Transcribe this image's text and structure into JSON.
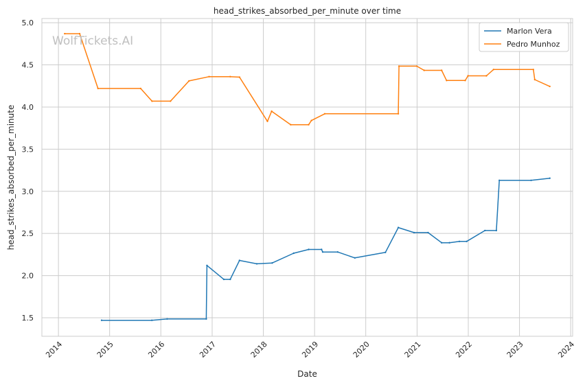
{
  "chart_data": {
    "type": "line",
    "title": "head_strikes_absorbed_per_minute over time",
    "xlabel": "Date",
    "ylabel": "head_strikes_absorbed_per_minute",
    "watermark": "WolfTickets.AI",
    "x_ticks": [
      "2014",
      "2015",
      "2016",
      "2017",
      "2018",
      "2019",
      "2020",
      "2021",
      "2022",
      "2023",
      "2024"
    ],
    "y_ticks": [
      "1.5",
      "2.0",
      "2.5",
      "3.0",
      "3.5",
      "4.0",
      "4.5",
      "5.0"
    ],
    "xlim": [
      "2013-09-05",
      "2024-01-15"
    ],
    "ylim": [
      1.28,
      5.05
    ],
    "grid": true,
    "legend_position": "top-right",
    "series": [
      {
        "name": "Marlon Vera",
        "color": "#1f77b4",
        "points": [
          [
            "2014-11-05",
            1.47
          ],
          [
            "2015-10-29",
            1.47
          ],
          [
            "2016-02-15",
            1.485
          ],
          [
            "2016-11-20",
            1.485
          ],
          [
            "2016-11-25",
            2.12
          ],
          [
            "2017-03-25",
            1.955
          ],
          [
            "2017-05-10",
            1.955
          ],
          [
            "2017-07-15",
            2.18
          ],
          [
            "2017-11-15",
            2.14
          ],
          [
            "2018-03-05",
            2.15
          ],
          [
            "2018-08-05",
            2.265
          ],
          [
            "2018-11-20",
            2.31
          ],
          [
            "2019-02-20",
            2.31
          ],
          [
            "2019-02-28",
            2.28
          ],
          [
            "2019-06-15",
            2.28
          ],
          [
            "2019-10-15",
            2.21
          ],
          [
            "2020-05-20",
            2.275
          ],
          [
            "2020-08-20",
            2.57
          ],
          [
            "2020-12-10",
            2.51
          ],
          [
            "2021-03-20",
            2.51
          ],
          [
            "2021-06-25",
            2.39
          ],
          [
            "2021-08-20",
            2.39
          ],
          [
            "2021-10-30",
            2.405
          ],
          [
            "2021-12-20",
            2.405
          ],
          [
            "2022-04-30",
            2.535
          ],
          [
            "2022-07-20",
            2.535
          ],
          [
            "2022-08-10",
            3.13
          ],
          [
            "2023-03-25",
            3.13
          ],
          [
            "2023-08-05",
            3.155
          ]
        ]
      },
      {
        "name": "Pedro Munhoz",
        "color": "#ff7f0e",
        "points": [
          [
            "2014-02-15",
            4.87
          ],
          [
            "2014-06-01",
            4.87
          ],
          [
            "2014-10-10",
            4.22
          ],
          [
            "2015-08-10",
            4.22
          ],
          [
            "2015-10-30",
            4.07
          ],
          [
            "2016-03-10",
            4.07
          ],
          [
            "2016-07-20",
            4.31
          ],
          [
            "2016-12-10",
            4.36
          ],
          [
            "2017-05-10",
            4.36
          ],
          [
            "2017-07-15",
            4.355
          ],
          [
            "2018-01-30",
            3.83
          ],
          [
            "2018-03-01",
            3.95
          ],
          [
            "2018-07-15",
            3.79
          ],
          [
            "2018-11-20",
            3.79
          ],
          [
            "2018-12-10",
            3.84
          ],
          [
            "2019-03-15",
            3.92
          ],
          [
            "2020-08-20",
            3.92
          ],
          [
            "2020-08-25",
            4.485
          ],
          [
            "2020-12-30",
            4.485
          ],
          [
            "2021-02-20",
            4.435
          ],
          [
            "2021-06-25",
            4.435
          ],
          [
            "2021-07-30",
            4.315
          ],
          [
            "2021-12-10",
            4.315
          ],
          [
            "2021-12-30",
            4.37
          ],
          [
            "2022-05-10",
            4.37
          ],
          [
            "2022-06-30",
            4.445
          ],
          [
            "2023-04-10",
            4.445
          ],
          [
            "2023-04-20",
            4.325
          ],
          [
            "2023-08-05",
            4.245
          ]
        ]
      }
    ]
  }
}
